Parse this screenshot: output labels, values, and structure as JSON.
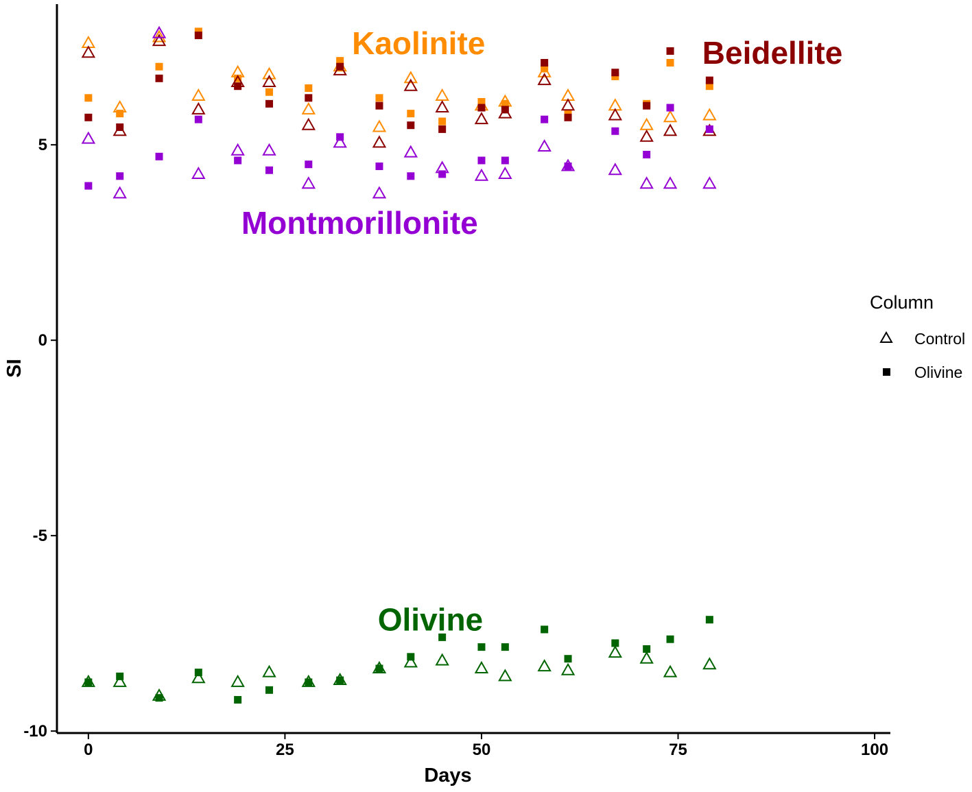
{
  "chart_data": {
    "type": "scatter",
    "title": "",
    "xlabel": "Days",
    "ylabel": "SI",
    "xlim": [
      -4,
      102
    ],
    "ylim": [
      -10.05,
      8.6
    ],
    "xticks": [
      0,
      25,
      50,
      75,
      100
    ],
    "yticks": [
      -10,
      -5,
      0,
      5
    ],
    "grid": false,
    "legend": {
      "title": "Column",
      "position": "right",
      "entries": [
        {
          "name": "Control",
          "marker": "open-triangle"
        },
        {
          "name": "Olivine",
          "marker": "filled-square"
        }
      ]
    },
    "x": [
      0,
      4,
      9,
      14,
      19,
      23,
      28,
      32,
      37,
      41,
      45,
      50,
      53,
      58,
      61,
      67,
      71,
      74,
      79
    ],
    "series": [
      {
        "mineral": "Kaolinite",
        "column": "Control",
        "color": "#FF8C00",
        "values": [
          7.6,
          5.95,
          7.75,
          6.25,
          6.85,
          6.8,
          5.9,
          7.0,
          5.45,
          6.7,
          6.25,
          6.0,
          6.1,
          6.85,
          6.25,
          6.0,
          5.5,
          5.7,
          5.75
        ]
      },
      {
        "mineral": "Kaolinite",
        "column": "Olivine",
        "color": "#FF8C00",
        "values": [
          6.2,
          5.8,
          7.0,
          7.9,
          6.7,
          6.35,
          6.45,
          7.15,
          6.2,
          5.8,
          5.6,
          6.1,
          6.05,
          6.95,
          5.8,
          6.75,
          6.05,
          7.1,
          6.5
        ]
      },
      {
        "mineral": "Beidellite",
        "column": "Control",
        "color": "#8B0000",
        "values": [
          7.35,
          5.35,
          7.65,
          5.9,
          6.6,
          6.6,
          5.5,
          6.9,
          5.05,
          6.5,
          5.95,
          5.65,
          5.8,
          6.65,
          6.0,
          5.75,
          5.2,
          5.35,
          5.35
        ]
      },
      {
        "mineral": "Beidellite",
        "column": "Olivine",
        "color": "#8B0000",
        "values": [
          5.7,
          5.45,
          6.7,
          7.8,
          6.5,
          6.05,
          6.2,
          7.0,
          6.0,
          5.5,
          5.4,
          5.95,
          5.9,
          7.1,
          5.7,
          6.85,
          6.0,
          7.4,
          6.65
        ]
      },
      {
        "mineral": "Montmorillonite",
        "column": "Control",
        "color": "#9400D3",
        "values": [
          5.15,
          3.75,
          7.85,
          4.25,
          4.85,
          4.85,
          4.0,
          5.05,
          3.75,
          4.8,
          4.4,
          4.2,
          4.25,
          4.95,
          4.45,
          4.35,
          4.0,
          4.0,
          4.0
        ]
      },
      {
        "mineral": "Montmorillonite",
        "column": "Olivine",
        "color": "#9400D3",
        "values": [
          3.95,
          4.2,
          4.7,
          5.65,
          4.6,
          4.35,
          4.5,
          5.2,
          4.45,
          4.2,
          4.25,
          4.6,
          4.6,
          5.65,
          4.45,
          5.35,
          4.75,
          5.95,
          5.4
        ]
      },
      {
        "mineral": "Olivine",
        "column": "Control",
        "color": "#006400",
        "values": [
          -8.75,
          -8.75,
          -9.1,
          -8.65,
          -8.75,
          -8.5,
          -8.75,
          -8.7,
          -8.4,
          -8.25,
          -8.2,
          -8.4,
          -8.6,
          -8.35,
          -8.45,
          -8.0,
          -8.15,
          -8.5,
          -8.3
        ]
      },
      {
        "mineral": "Olivine",
        "column": "Olivine",
        "color": "#006400",
        "values": [
          -8.75,
          -8.6,
          -9.15,
          -8.5,
          -9.2,
          -8.95,
          -8.75,
          -8.7,
          -8.4,
          -8.1,
          -7.6,
          -7.85,
          -7.85,
          -7.4,
          -8.15,
          -7.75,
          -7.9,
          -7.65,
          -7.15
        ]
      }
    ],
    "annotations": [
      {
        "text": "Kaolinite",
        "color": "#FF8C00",
        "x": 42,
        "y": 7.6
      },
      {
        "text": "Beidellite",
        "color": "#8B0000",
        "x": 87,
        "y": 7.35
      },
      {
        "text": "Montmorillonite",
        "color": "#9400D3",
        "x": 34.5,
        "y": 3.0
      },
      {
        "text": "Olivine",
        "color": "#006400",
        "x": 43.5,
        "y": -7.15
      }
    ]
  }
}
